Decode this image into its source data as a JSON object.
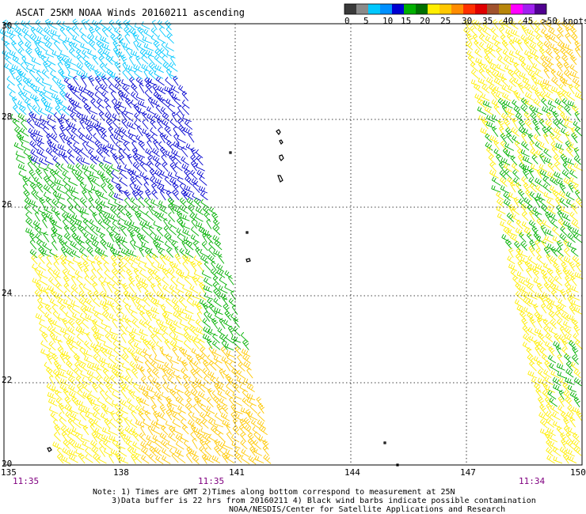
{
  "title": "ASCAT 25KM NOAA Winds 20160211 ascending",
  "colorbar": {
    "colors": [
      "#3a3a3a",
      "#8a8a8a",
      "#00c8ff",
      "#0090ff",
      "#0000d0",
      "#00b000",
      "#007000",
      "#ffee00",
      "#ffc800",
      "#ff8c00",
      "#ff3000",
      "#e00000",
      "#a0522d",
      "#b8860b",
      "#ff00ff",
      "#a020f0",
      "#500090"
    ],
    "tick_labels": [
      "0",
      "5",
      "10",
      "15",
      "20",
      "25",
      "30",
      "35",
      "40",
      "45",
      ">50 knots"
    ]
  },
  "axes": {
    "lon_labels": [
      "135",
      "138",
      "141",
      "144",
      "147",
      "150"
    ],
    "lat_labels": [
      "30",
      "28",
      "26",
      "24",
      "22",
      "20"
    ]
  },
  "time_labels": [
    "11:35",
    "11:35",
    "11:34"
  ],
  "notes": {
    "line1": "Note: 1) Times are GMT 2)Times along bottom correspond to measurement at 25N",
    "line2": "3)Data buffer is 22 hrs from 20160211 4) Black wind barbs indicate possible contamination",
    "line3": "NOAA/NESDIS/Center for Satellite Applications and Research"
  },
  "swaths": [
    {
      "name": "west-swath",
      "lon_range": [
        135,
        141.3
      ],
      "lat_range": [
        20,
        30
      ]
    },
    {
      "name": "east-swath",
      "lon_range": [
        147,
        150
      ],
      "lat_range": [
        20,
        30
      ]
    }
  ],
  "speed_colors": {
    "0-5": "#8a8a8a",
    "5-10": "#00c8ff",
    "10-15": "#0000d0",
    "15-20": "#00b000",
    "20-25": "#ffee00",
    "25-30": "#ffc800",
    "30-35": "#ff8c00"
  },
  "labels_color": "#800080"
}
